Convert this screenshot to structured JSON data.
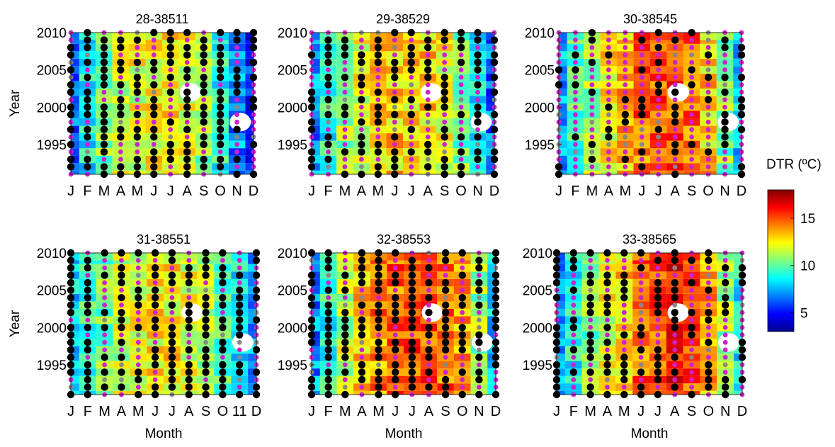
{
  "colorbar": {
    "label": "DTR (ºC)",
    "ticks": [
      5,
      10,
      15
    ],
    "range": [
      3,
      18
    ],
    "colormap": "jet"
  },
  "chart_data": [
    {
      "type": "heatmap",
      "title": "28-38511",
      "ylabel": "Year",
      "xlabel": "",
      "x_tick_labels": [
        "J",
        "F",
        "M",
        "A",
        "M",
        "J",
        "J",
        "A",
        "S",
        "O",
        "N",
        "D"
      ],
      "y_ticks": [
        1995,
        2000,
        2005,
        2010
      ],
      "ylim": [
        1991,
        2010
      ],
      "monthly_mean_dtr": [
        6.5,
        8.5,
        10.5,
        11.5,
        12,
        12.5,
        13,
        12,
        10.5,
        9,
        7,
        5.5
      ],
      "dot_pattern": "black-dominant"
    },
    {
      "type": "heatmap",
      "title": "29-38529",
      "ylabel": "",
      "xlabel": "",
      "x_tick_labels": [
        "J",
        "F",
        "M",
        "A",
        "M",
        "J",
        "J",
        "A",
        "S",
        "O",
        "N",
        "D"
      ],
      "y_ticks": [
        1995,
        2000,
        2005,
        2010
      ],
      "ylim": [
        1991,
        2010
      ],
      "monthly_mean_dtr": [
        7,
        9,
        11,
        12,
        13,
        13,
        13,
        13,
        12,
        10.5,
        8.5,
        6.5
      ],
      "dot_pattern": "black-magenta-mixed"
    },
    {
      "type": "heatmap",
      "title": "30-38545",
      "ylabel": "",
      "xlabel": "",
      "x_tick_labels": [
        "J",
        "F",
        "M",
        "A",
        "M",
        "J",
        "J",
        "A",
        "S",
        "O",
        "N",
        "D"
      ],
      "y_ticks": [
        1995,
        2000,
        2005,
        2010
      ],
      "ylim": [
        1991,
        2010
      ],
      "monthly_mean_dtr": [
        7.5,
        9.5,
        11,
        12.5,
        13.5,
        14.5,
        15,
        15,
        14.5,
        13,
        10.5,
        8
      ],
      "dot_pattern": "magenta-dominant"
    },
    {
      "type": "heatmap",
      "title": "31-38551",
      "ylabel": "Year",
      "xlabel": "Month",
      "x_tick_labels": [
        "J",
        "F",
        "M",
        "A",
        "M",
        "J",
        "J",
        "A",
        "S",
        "O",
        "11",
        "D"
      ],
      "y_ticks": [
        1995,
        2000,
        2005,
        2010
      ],
      "ylim": [
        1991,
        2010
      ],
      "monthly_mean_dtr": [
        8,
        9.5,
        10.5,
        11.5,
        12,
        12.5,
        12.5,
        12,
        11,
        10,
        8.5,
        7.5
      ],
      "dot_pattern": "black-dominant"
    },
    {
      "type": "heatmap",
      "title": "32-38553",
      "ylabel": "",
      "xlabel": "Month",
      "x_tick_labels": [
        "J",
        "F",
        "M",
        "A",
        "M",
        "J",
        "J",
        "A",
        "S",
        "O",
        "N",
        "D"
      ],
      "y_ticks": [
        1995,
        2000,
        2005,
        2010
      ],
      "ylim": [
        1991,
        2010
      ],
      "monthly_mean_dtr": [
        7,
        9,
        11.5,
        13,
        14,
        14.5,
        15,
        15,
        14.5,
        13.5,
        11,
        8
      ],
      "dot_pattern": "black-dominant"
    },
    {
      "type": "heatmap",
      "title": "33-38565",
      "ylabel": "",
      "xlabel": "Month",
      "x_tick_labels": [
        "J",
        "F",
        "M",
        "A",
        "M",
        "J",
        "J",
        "A",
        "S",
        "O",
        "N",
        "D"
      ],
      "y_ticks": [
        1995,
        2000,
        2005,
        2010
      ],
      "ylim": [
        1991,
        2010
      ],
      "monthly_mean_dtr": [
        7.5,
        9,
        10.5,
        12,
        13,
        14.5,
        15,
        16,
        15,
        13.5,
        11,
        8.5
      ],
      "dot_pattern": "black-magenta-mixed"
    }
  ]
}
